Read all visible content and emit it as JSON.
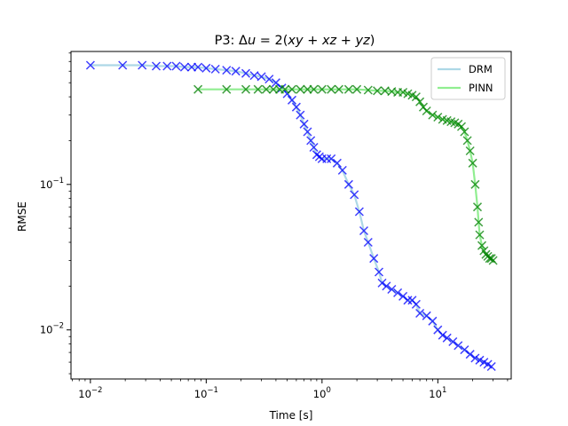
{
  "chart_data": {
    "type": "line",
    "title": "P3: Δu = 2(xy + xz + yz)",
    "title_parts": {
      "prefix": "P3: ",
      "delta": "Δ",
      "u": "u",
      "equals": " = 2(",
      "xy": "xy",
      "plus1": " + ",
      "xz": "xz",
      "plus2": " + ",
      "yz": "yz",
      "close": ")"
    },
    "xlabel": "Time [s]",
    "ylabel": "RMSE",
    "xscale": "log",
    "yscale": "log",
    "xlim": [
      0.0068,
      43
    ],
    "ylim": [
      0.0046,
      0.82
    ],
    "x_ticks": [
      {
        "value": 0.01,
        "base": "10",
        "exp": "−2"
      },
      {
        "value": 0.1,
        "base": "10",
        "exp": "−1"
      },
      {
        "value": 1,
        "base": "10",
        "exp": "0"
      },
      {
        "value": 10,
        "base": "10",
        "exp": "1"
      }
    ],
    "y_ticks": [
      {
        "value": 0.01,
        "base": "10",
        "exp": "−2"
      },
      {
        "value": 0.1,
        "base": "10",
        "exp": "−1"
      }
    ],
    "legend_position": "upper right",
    "series": [
      {
        "name": "DRM",
        "line_color": "#add8e6",
        "marker_color": "#0000ff",
        "marker": "x",
        "x": [
          0.01,
          0.019,
          0.028,
          0.037,
          0.046,
          0.055,
          0.065,
          0.075,
          0.085,
          0.1,
          0.12,
          0.15,
          0.18,
          0.22,
          0.26,
          0.3,
          0.35,
          0.4,
          0.45,
          0.5,
          0.55,
          0.6,
          0.65,
          0.7,
          0.75,
          0.8,
          0.85,
          0.9,
          0.95,
          1.0,
          1.1,
          1.2,
          1.35,
          1.5,
          1.7,
          1.9,
          2.1,
          2.3,
          2.5,
          2.8,
          3.1,
          3.3,
          3.6,
          4.0,
          4.5,
          5.0,
          5.5,
          6.0,
          6.5,
          7.0,
          8.0,
          9.0,
          10.0,
          11.0,
          12.0,
          13.5,
          15.0,
          17.0,
          19.0,
          21.0,
          23.0,
          25.0,
          27.0,
          29.0
        ],
        "y": [
          0.66,
          0.66,
          0.66,
          0.65,
          0.65,
          0.65,
          0.64,
          0.64,
          0.64,
          0.63,
          0.62,
          0.61,
          0.6,
          0.58,
          0.56,
          0.55,
          0.53,
          0.5,
          0.46,
          0.42,
          0.38,
          0.34,
          0.3,
          0.26,
          0.23,
          0.2,
          0.18,
          0.16,
          0.155,
          0.15,
          0.15,
          0.15,
          0.14,
          0.125,
          0.1,
          0.085,
          0.065,
          0.048,
          0.04,
          0.031,
          0.025,
          0.021,
          0.02,
          0.019,
          0.018,
          0.017,
          0.016,
          0.016,
          0.015,
          0.013,
          0.0125,
          0.0115,
          0.01,
          0.0092,
          0.0088,
          0.0083,
          0.0078,
          0.0073,
          0.0068,
          0.0064,
          0.0062,
          0.006,
          0.0058,
          0.0056
        ]
      },
      {
        "name": "PINN",
        "line_color": "#90ee90",
        "marker_color": "#008000",
        "marker": "x",
        "x": [
          0.085,
          0.15,
          0.22,
          0.28,
          0.33,
          0.38,
          0.43,
          0.48,
          0.55,
          0.65,
          0.75,
          0.85,
          1.0,
          1.2,
          1.4,
          1.7,
          2.0,
          2.5,
          3.0,
          3.5,
          4.0,
          4.5,
          5.0,
          5.5,
          6.0,
          6.5,
          7.0,
          7.5,
          8.0,
          9.0,
          10.0,
          11.0,
          12.0,
          13.0,
          14.0,
          15.0,
          16.0,
          17.0,
          18.0,
          19.0,
          20.0,
          21.0,
          22.0,
          22.5,
          23.0,
          24.0,
          25.0,
          26.0,
          27.0,
          28.0,
          29.0,
          30.0
        ],
        "y": [
          0.45,
          0.45,
          0.45,
          0.45,
          0.45,
          0.45,
          0.45,
          0.45,
          0.45,
          0.45,
          0.45,
          0.45,
          0.45,
          0.45,
          0.45,
          0.45,
          0.45,
          0.445,
          0.44,
          0.44,
          0.435,
          0.43,
          0.43,
          0.42,
          0.41,
          0.4,
          0.37,
          0.34,
          0.32,
          0.3,
          0.29,
          0.28,
          0.275,
          0.27,
          0.265,
          0.26,
          0.25,
          0.23,
          0.2,
          0.17,
          0.14,
          0.1,
          0.07,
          0.055,
          0.045,
          0.038,
          0.035,
          0.033,
          0.032,
          0.031,
          0.031,
          0.03
        ]
      }
    ]
  }
}
